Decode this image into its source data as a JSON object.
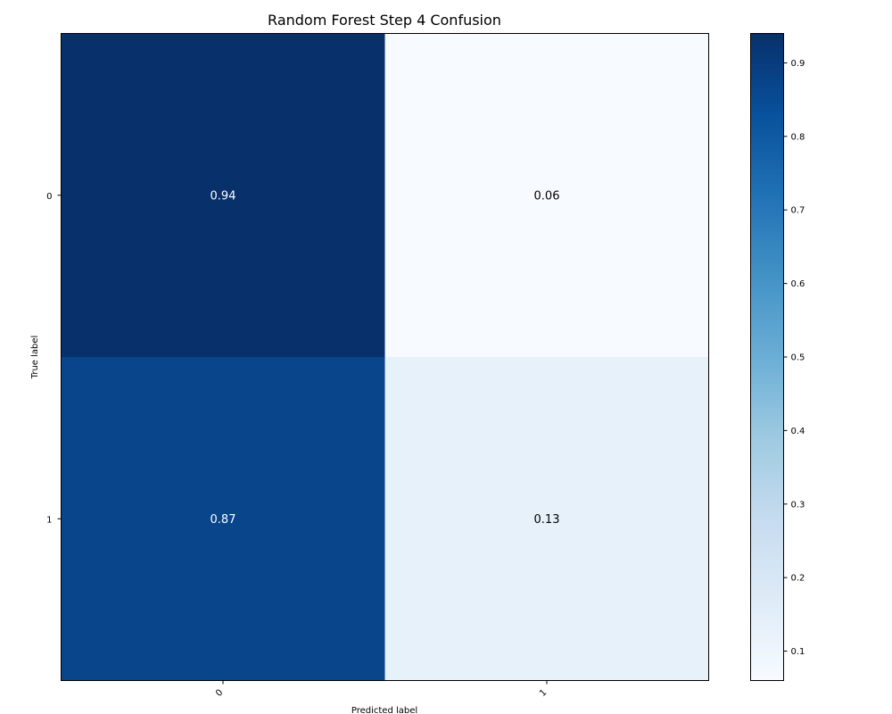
{
  "chart_data": {
    "type": "heatmap",
    "title": "Random Forest Step 4 Confusion",
    "xlabel": "Predicted label",
    "ylabel": "True label",
    "x_categories": [
      "0",
      "1"
    ],
    "y_categories": [
      "0",
      "1"
    ],
    "values": [
      [
        0.94,
        0.06
      ],
      [
        0.87,
        0.13
      ]
    ],
    "value_labels": [
      [
        "0.94",
        "0.06"
      ],
      [
        "0.87",
        "0.13"
      ]
    ],
    "colorbar": {
      "range": [
        0.06,
        0.94
      ],
      "ticks": [
        0.1,
        0.2,
        0.3,
        0.4,
        0.5,
        0.6,
        0.7,
        0.8,
        0.9
      ],
      "tick_labels": [
        "0.1",
        "0.2",
        "0.3",
        "0.4",
        "0.5",
        "0.6",
        "0.7",
        "0.8",
        "0.9"
      ]
    },
    "colormap": [
      "#f7fbff",
      "#deebf7",
      "#c6dbef",
      "#9ecae1",
      "#6baed6",
      "#4292c6",
      "#2171b5",
      "#08519c",
      "#08306b"
    ]
  }
}
